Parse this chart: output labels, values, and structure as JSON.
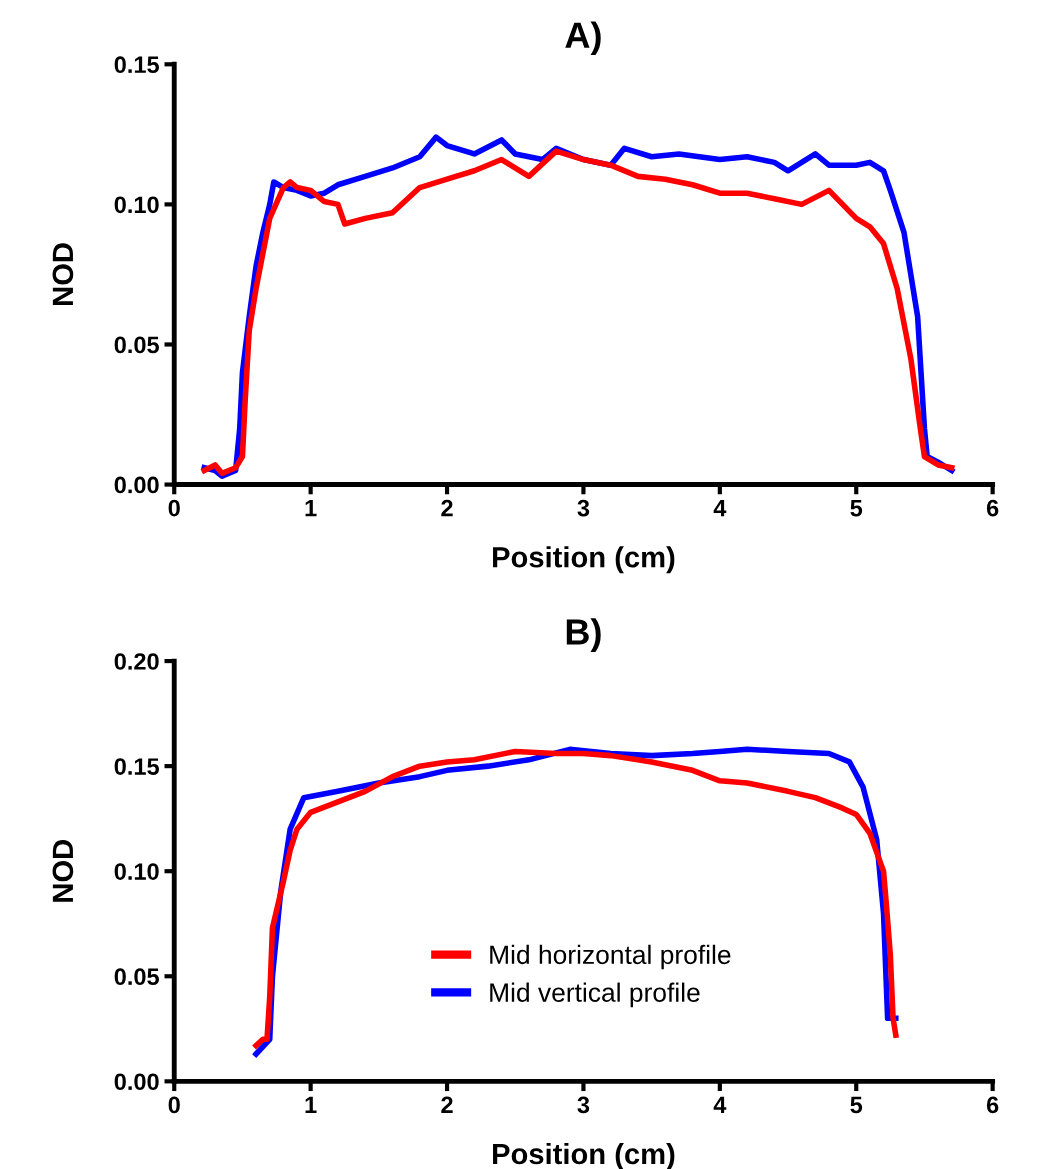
{
  "chart_data": [
    {
      "type": "line",
      "title": "A)",
      "xlabel": "Position (cm)",
      "ylabel": "NOD",
      "xlim": [
        0,
        6
      ],
      "xticks": [
        0,
        1,
        2,
        3,
        4,
        5,
        6
      ],
      "ylim": [
        0,
        0.15
      ],
      "yticks": [
        {
          "value": 0,
          "label": "0.00"
        },
        {
          "value": 0.05,
          "label": "0.05"
        },
        {
          "value": 0.1,
          "label": "0.10"
        },
        {
          "value": 0.15,
          "label": "0.15"
        }
      ],
      "grid": false,
      "legend": false,
      "series": [
        {
          "color": "#0000ff",
          "x": [
            0.22,
            0.3,
            0.35,
            0.45,
            0.48,
            0.5,
            0.55,
            0.6,
            0.65,
            0.7,
            0.73,
            0.8,
            0.9,
            1.0,
            1.1,
            1.2,
            1.4,
            1.6,
            1.8,
            1.92,
            2.0,
            2.2,
            2.4,
            2.5,
            2.7,
            2.8,
            3.0,
            3.2,
            3.3,
            3.5,
            3.7,
            4.0,
            4.2,
            4.4,
            4.5,
            4.7,
            4.8,
            5.0,
            5.1,
            5.2,
            5.25,
            5.35,
            5.45,
            5.5,
            5.52,
            5.6,
            5.7
          ],
          "values": [
            0.006,
            0.005,
            0.003,
            0.005,
            0.02,
            0.04,
            0.06,
            0.078,
            0.09,
            0.1,
            0.108,
            0.106,
            0.105,
            0.103,
            0.104,
            0.107,
            0.11,
            0.113,
            0.117,
            0.124,
            0.121,
            0.118,
            0.123,
            0.118,
            0.116,
            0.12,
            0.116,
            0.114,
            0.12,
            0.117,
            0.118,
            0.116,
            0.117,
            0.115,
            0.112,
            0.118,
            0.114,
            0.114,
            0.115,
            0.112,
            0.105,
            0.09,
            0.06,
            0.02,
            0.01,
            0.008,
            0.005
          ]
        },
        {
          "color": "#ff0000",
          "x": [
            0.22,
            0.3,
            0.35,
            0.45,
            0.5,
            0.52,
            0.55,
            0.6,
            0.7,
            0.8,
            0.85,
            0.9,
            1.0,
            1.1,
            1.2,
            1.25,
            1.4,
            1.6,
            1.8,
            2.0,
            2.2,
            2.4,
            2.6,
            2.8,
            3.0,
            3.2,
            3.4,
            3.6,
            3.8,
            4.0,
            4.2,
            4.4,
            4.6,
            4.8,
            4.9,
            5.0,
            5.1,
            5.2,
            5.3,
            5.4,
            5.47,
            5.5,
            5.6,
            5.7
          ],
          "values": [
            0.005,
            0.007,
            0.004,
            0.006,
            0.01,
            0.03,
            0.055,
            0.07,
            0.095,
            0.106,
            0.108,
            0.106,
            0.105,
            0.101,
            0.1,
            0.093,
            0.095,
            0.097,
            0.106,
            0.109,
            0.112,
            0.116,
            0.11,
            0.119,
            0.116,
            0.114,
            0.11,
            0.109,
            0.107,
            0.104,
            0.104,
            0.102,
            0.1,
            0.105,
            0.1,
            0.095,
            0.092,
            0.086,
            0.07,
            0.045,
            0.02,
            0.01,
            0.007,
            0.006
          ]
        }
      ]
    },
    {
      "type": "line",
      "title": "B)",
      "xlabel": "Position (cm)",
      "ylabel": "NOD",
      "xlim": [
        0,
        6
      ],
      "xticks": [
        0,
        1,
        2,
        3,
        4,
        5,
        6
      ],
      "ylim": [
        0,
        0.2
      ],
      "yticks": [
        {
          "value": 0,
          "label": "0.00"
        },
        {
          "value": 0.05,
          "label": "0.05"
        },
        {
          "value": 0.1,
          "label": "0.10"
        },
        {
          "value": 0.15,
          "label": "0.15"
        },
        {
          "value": 0.2,
          "label": "0.20"
        }
      ],
      "grid": false,
      "legend": "bottom",
      "series": [
        {
          "name": "Mid vertical profile",
          "color": "#0000ff",
          "x": [
            0.6,
            0.7,
            0.72,
            0.78,
            0.85,
            0.95,
            1.2,
            1.5,
            1.8,
            2.0,
            2.3,
            2.6,
            2.9,
            3.2,
            3.5,
            3.8,
            4.0,
            4.2,
            4.5,
            4.8,
            4.95,
            5.05,
            5.15,
            5.2,
            5.23,
            5.29
          ],
          "values": [
            0.013,
            0.02,
            0.05,
            0.09,
            0.12,
            0.135,
            0.138,
            0.142,
            0.145,
            0.148,
            0.15,
            0.153,
            0.158,
            0.156,
            0.155,
            0.156,
            0.157,
            0.158,
            0.157,
            0.156,
            0.152,
            0.14,
            0.115,
            0.08,
            0.03,
            0.03
          ]
        },
        {
          "name": "Mid horizontal profile",
          "color": "#ff0000",
          "x": [
            0.6,
            0.65,
            0.68,
            0.7,
            0.72,
            0.8,
            0.85,
            0.9,
            1.0,
            1.2,
            1.4,
            1.6,
            1.8,
            2.0,
            2.2,
            2.5,
            2.8,
            3.0,
            3.2,
            3.5,
            3.8,
            4.0,
            4.2,
            4.5,
            4.7,
            4.9,
            5.0,
            5.1,
            5.2,
            5.22,
            5.25,
            5.27,
            5.29
          ],
          "values": [
            0.017,
            0.02,
            0.02,
            0.04,
            0.073,
            0.095,
            0.11,
            0.12,
            0.128,
            0.133,
            0.138,
            0.145,
            0.15,
            0.152,
            0.153,
            0.157,
            0.156,
            0.156,
            0.155,
            0.152,
            0.148,
            0.143,
            0.142,
            0.138,
            0.135,
            0.13,
            0.127,
            0.118,
            0.1,
            0.085,
            0.06,
            0.03,
            0.022
          ]
        }
      ]
    }
  ]
}
